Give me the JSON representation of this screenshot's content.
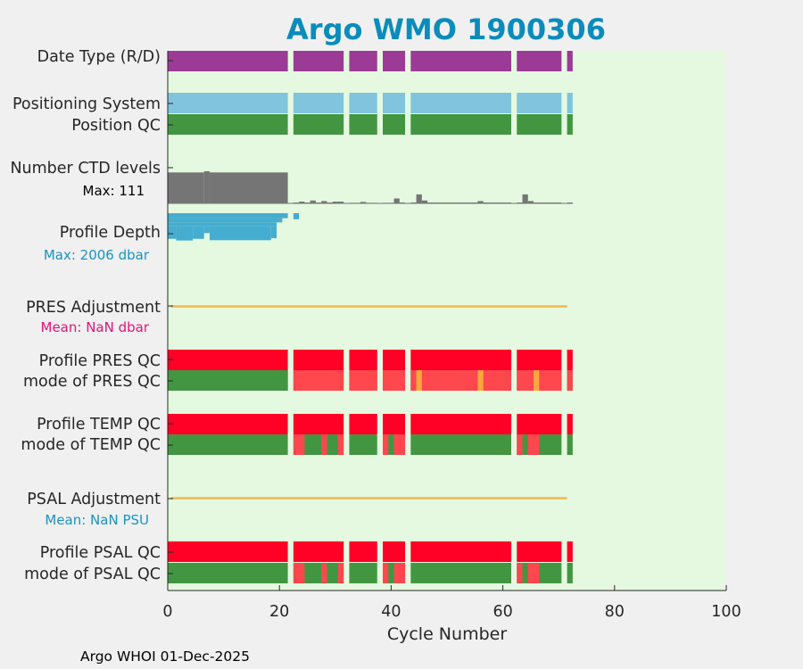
{
  "chart_data": {
    "type": "bar",
    "title": "Argo WMO 1900306",
    "xlabel": "Cycle Number",
    "xlim": [
      0,
      100
    ],
    "xticks": [
      0,
      20,
      40,
      60,
      80,
      100
    ],
    "footer": "Argo WHOI 01-Dec-2025",
    "colors": {
      "background": "#e5f9e0",
      "date_type": "#9b3b96",
      "positioning": "#80c4dd",
      "qc_good": "#439641",
      "qc_bad": "#ff0027",
      "qc_mode_mixed": "#ff474e",
      "qc_mode_probably": "#f9a73e",
      "ctd": "#757575",
      "depth": "#45adcf",
      "adjustment": "#f2b84b",
      "pres_mean": "#e2157a",
      "psal_mean": "#1993c7"
    },
    "labels": {
      "date_type": "Date Type (R/D)",
      "positioning": "Positioning System",
      "position_qc": "Position QC",
      "ctd_levels": "Number CTD levels",
      "ctd_max": "Max: 111",
      "profile_depth": "Profile Depth",
      "depth_max": "Max: 2006 dbar",
      "pres_adj": "PRES Adjustment",
      "pres_mean": "Mean:  NaN dbar",
      "profile_pres_qc": "Profile PRES QC",
      "mode_pres_qc": "mode of PRES QC",
      "profile_temp_qc": "Profile TEMP QC",
      "mode_temp_qc": "mode of TEMP QC",
      "psal_adj": "PSAL Adjustment",
      "psal_mean": "Mean:  NaN PSU",
      "profile_psal_qc": "Profile PSAL QC",
      "mode_psal_qc": "mode of PSAL QC"
    },
    "cycle_segments": [
      [
        0,
        21.5
      ],
      [
        22.5,
        31.5
      ],
      [
        32.5,
        37.5
      ],
      [
        38.5,
        42.5
      ],
      [
        43.5,
        61.5
      ],
      [
        62.5,
        70.5
      ],
      [
        71.5,
        72.5
      ]
    ],
    "ctd_levels": {
      "max": 111,
      "early": [
        [
          0,
          6.5,
          107
        ],
        [
          6.5,
          7.5,
          111
        ],
        [
          7.5,
          21.5,
          107
        ]
      ],
      "late": [
        [
          22.5,
          23.5,
          3
        ],
        [
          23.5,
          24.5,
          6
        ],
        [
          24.5,
          25.5,
          3
        ],
        [
          25.5,
          26.5,
          10
        ],
        [
          26.5,
          27.5,
          3
        ],
        [
          27.5,
          28.5,
          8
        ],
        [
          28.5,
          29.5,
          3
        ],
        [
          29.5,
          31.5,
          6
        ],
        [
          32.5,
          34.5,
          2
        ],
        [
          34.5,
          35.5,
          5
        ],
        [
          35.5,
          37.5,
          2
        ],
        [
          38.5,
          40.5,
          2
        ],
        [
          40.5,
          41.5,
          17
        ],
        [
          41.5,
          42.5,
          3
        ],
        [
          43.5,
          44.5,
          3
        ],
        [
          44.5,
          45.5,
          31
        ],
        [
          45.5,
          46.5,
          10
        ],
        [
          46.5,
          55.5,
          3
        ],
        [
          55.5,
          56.5,
          8
        ],
        [
          56.5,
          61.5,
          3
        ],
        [
          62.5,
          63.5,
          3
        ],
        [
          63.5,
          64.5,
          31
        ],
        [
          64.5,
          65.5,
          8
        ],
        [
          65.5,
          70.5,
          3
        ],
        [
          71.5,
          72.5,
          3
        ]
      ]
    },
    "profile_depth": {
      "max": 2006,
      "bands": [
        [
          0,
          21.5,
          0,
          176
        ],
        [
          0,
          20.5,
          176,
          324
        ],
        [
          0,
          19.5,
          324,
          450
        ],
        [
          0,
          1.5,
          450,
          900
        ],
        [
          1.5,
          4.5,
          450,
          960
        ],
        [
          4.5,
          6.5,
          450,
          900
        ],
        [
          6.5,
          7.5,
          450,
          700
        ],
        [
          7.5,
          18.5,
          450,
          950
        ],
        [
          18.5,
          19.5,
          450,
          880
        ],
        [
          22.5,
          23.5,
          0,
          214
        ]
      ]
    },
    "pres_adjustment": {
      "from": 0.5,
      "to": 71.5,
      "mean": "NaN"
    },
    "psal_adjustment": {
      "from": 0.5,
      "to": 71.5,
      "mean": "NaN"
    },
    "mode_pres_qc": {
      "base": "mixed",
      "probably_cycles": [
        45,
        56,
        66
      ]
    },
    "mode_temp_qc": {
      "base": "good",
      "mixed_cycles": [
        23,
        24,
        28,
        31,
        39,
        41,
        42,
        63,
        65,
        66
      ]
    },
    "mode_psal_qc": {
      "base": "good",
      "mixed_cycles": [
        23,
        24,
        28,
        31,
        39,
        41,
        42,
        63,
        65,
        66
      ]
    }
  }
}
